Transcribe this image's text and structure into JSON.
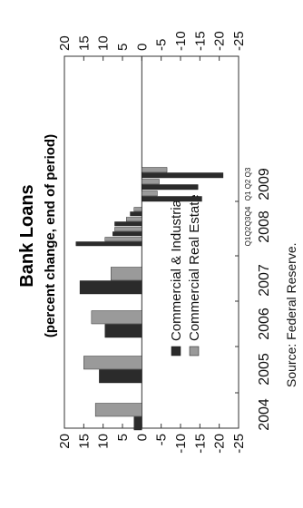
{
  "chart_data": {
    "type": "bar",
    "orientation": "rotated-90-ccw",
    "title": "Bank Loans",
    "subtitle": "(percent change, end of period)",
    "source": "Source:  Federal Reserve.",
    "axis_ticks": [
      "20",
      "15",
      "10",
      "5",
      "0",
      "-5",
      "-10",
      "-15",
      "-20",
      "-25"
    ],
    "axis_range": [
      -25,
      20
    ],
    "year_labels": [
      "2004",
      "2005",
      "2006",
      "2007",
      "2008",
      "2009"
    ],
    "quarter_labels": [
      "Q1",
      "Q2",
      "Q3",
      "Q4",
      "Q1",
      "Q2",
      "Q3"
    ],
    "categories": [
      "2004",
      "2005",
      "2006",
      "2007",
      "2008 Q1",
      "2008 Q2",
      "2008 Q3",
      "2008 Q4",
      "2009 Q1",
      "2009 Q2",
      "2009 Q3"
    ],
    "series": [
      {
        "name": "Commercial & Industrial",
        "color": "#2b2b2b",
        "values": [
          2,
          11,
          9.5,
          16,
          17,
          7.5,
          7,
          3,
          -15.5,
          -14.5,
          -21
        ]
      },
      {
        "name": "Commercial Real Estate",
        "color": "#9a9a9a",
        "values": [
          12,
          15,
          13,
          8,
          9.5,
          7,
          4,
          2,
          -4,
          -4.5,
          -6.5
        ]
      }
    ],
    "legend_position": "center-left",
    "grid": false
  }
}
